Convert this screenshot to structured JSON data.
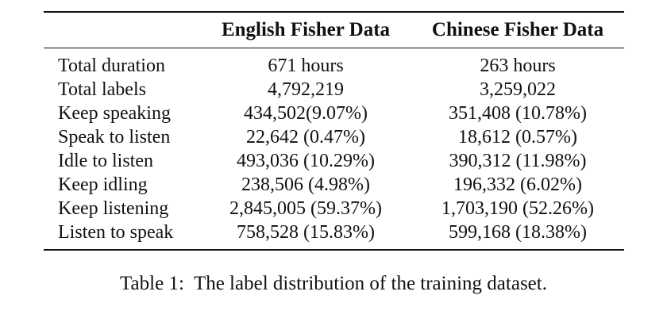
{
  "table": {
    "headers": {
      "english": "English Fisher Data",
      "chinese": "Chinese Fisher Data"
    },
    "rows": [
      {
        "label": "Total duration",
        "english": "671 hours",
        "chinese": "263 hours"
      },
      {
        "label": "Total labels",
        "english": "4,792,219",
        "chinese": "3,259,022"
      },
      {
        "label": "Keep speaking",
        "english": "434,502(9.07%)",
        "chinese": "351,408 (10.78%)"
      },
      {
        "label": "Speak to listen",
        "english": "22,642 (0.47%)",
        "chinese": "18,612 (0.57%)"
      },
      {
        "label": "Idle to listen",
        "english": "493,036 (10.29%)",
        "chinese": "390,312 (11.98%)"
      },
      {
        "label": "Keep idling",
        "english": "238,506 (4.98%)",
        "chinese": "196,332 (6.02%)"
      },
      {
        "label": "Keep listening",
        "english": "2,845,005 (59.37%)",
        "chinese": "1,703,190 (52.26%)"
      },
      {
        "label": "Listen to speak",
        "english": "758,528 (15.83%)",
        "chinese": "599,168 (18.38%)"
      }
    ]
  },
  "caption": "Table 1:  The label distribution of the training dataset."
}
